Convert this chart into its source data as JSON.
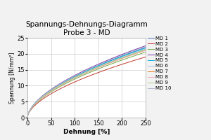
{
  "title": "Spannungs-Dehnungs-Diagramm\nProbe 3 - MD",
  "xlabel": "Dehnung [%]",
  "ylabel": "Spannung [N/mm²]",
  "xlim": [
    0,
    250
  ],
  "ylim": [
    0,
    25
  ],
  "xticks": [
    0,
    50,
    100,
    150,
    200,
    250
  ],
  "yticks": [
    0,
    5,
    10,
    15,
    20,
    25
  ],
  "series": [
    {
      "label": "MD 1",
      "color": "#4472c4",
      "end_y": 22.0
    },
    {
      "label": "MD 2",
      "color": "#c0392b",
      "end_y": 19.0
    },
    {
      "label": "MD 3",
      "color": "#70ad47",
      "end_y": 20.5
    },
    {
      "label": "MD 4",
      "color": "#7030a0",
      "end_y": 22.5
    },
    {
      "label": "MD 5",
      "color": "#00b0d8",
      "end_y": 21.8
    },
    {
      "label": "MD 6",
      "color": "#9dc3e6",
      "end_y": 21.5
    },
    {
      "label": "MD 7",
      "color": "#e67e22",
      "end_y": 21.2
    },
    {
      "label": "MD 8",
      "color": "#f4acb7",
      "end_y": 21.0
    },
    {
      "label": "MD 9",
      "color": "#a9d18e",
      "end_y": 21.3
    },
    {
      "label": "MD 10",
      "color": "#b0b8d0",
      "end_y": 22.2
    }
  ],
  "background_color": "#f2f2f2",
  "plot_bg_color": "#ffffff",
  "title_fontsize": 7.5,
  "axis_label_fontsize": 6.5,
  "tick_fontsize": 6,
  "legend_fontsize": 5,
  "linewidth": 0.7,
  "power_b": 0.58
}
